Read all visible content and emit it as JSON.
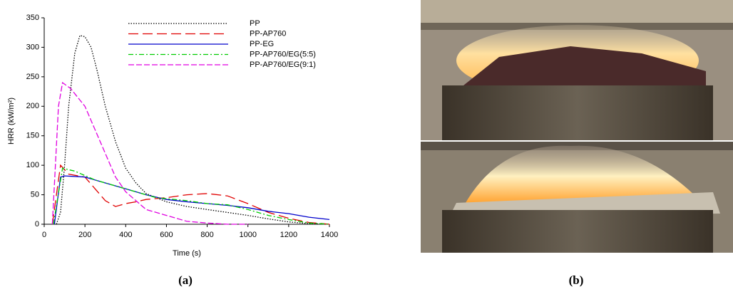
{
  "chart_data": {
    "type": "line",
    "xlabel": "Time (s)",
    "ylabel": "HRR (kW/m²)",
    "xlim": [
      0,
      1400
    ],
    "xticks": [
      0,
      200,
      400,
      600,
      800,
      1000,
      1200,
      1400
    ],
    "ylim": [
      0,
      350
    ],
    "yticks": [
      0,
      50,
      100,
      150,
      200,
      250,
      300,
      350
    ],
    "grid": false,
    "legend": "upper right",
    "series": [
      {
        "name": "PP",
        "color": "#000000",
        "linestyle": "dotted",
        "x": [
          60,
          80,
          100,
          120,
          150,
          175,
          200,
          230,
          260,
          300,
          350,
          400,
          450,
          500,
          600,
          700,
          800,
          900,
          1000,
          1100,
          1200,
          1300,
          1400
        ],
        "values": [
          0,
          20,
          100,
          200,
          290,
          320,
          318,
          300,
          260,
          200,
          140,
          95,
          70,
          52,
          38,
          30,
          25,
          20,
          15,
          9,
          4,
          1,
          0
        ]
      },
      {
        "name": "PP-AP760",
        "color": "#e00000",
        "linestyle": "longdash",
        "x": [
          40,
          80,
          120,
          200,
          250,
          300,
          350,
          400,
          450,
          500,
          600,
          700,
          800,
          900,
          1000,
          1100,
          1200,
          1300,
          1400
        ],
        "values": [
          0,
          100,
          85,
          80,
          60,
          40,
          30,
          35,
          38,
          42,
          45,
          50,
          52,
          48,
          35,
          20,
          10,
          3,
          0
        ]
      },
      {
        "name": "PP-EG",
        "color": "#0000cc",
        "linestyle": "solid",
        "x": [
          50,
          80,
          100,
          200,
          300,
          400,
          500,
          600,
          700,
          800,
          900,
          1000,
          1100,
          1200,
          1300,
          1400
        ],
        "values": [
          0,
          80,
          82,
          80,
          70,
          60,
          50,
          42,
          38,
          35,
          32,
          28,
          22,
          18,
          12,
          8
        ]
      },
      {
        "name": "PP-AP760/EG(5:5)",
        "color": "#00cc00",
        "linestyle": "dashdot",
        "x": [
          45,
          90,
          150,
          250,
          400,
          550,
          700,
          800,
          900,
          1000,
          1100,
          1200,
          1300,
          1400
        ],
        "values": [
          0,
          95,
          90,
          75,
          60,
          45,
          40,
          35,
          33,
          25,
          15,
          8,
          2,
          0
        ]
      },
      {
        "name": "PP-AP760/EG(9:1)",
        "color": "#e000e0",
        "linestyle": "dashed",
        "x": [
          40,
          70,
          90,
          130,
          200,
          250,
          300,
          350,
          400,
          450,
          500,
          600,
          700,
          800,
          900,
          1000
        ],
        "values": [
          0,
          200,
          240,
          230,
          200,
          160,
          120,
          80,
          55,
          40,
          25,
          15,
          5,
          2,
          0,
          0
        ]
      }
    ]
  },
  "panel_labels": [
    "(a)",
    "(b)"
  ]
}
